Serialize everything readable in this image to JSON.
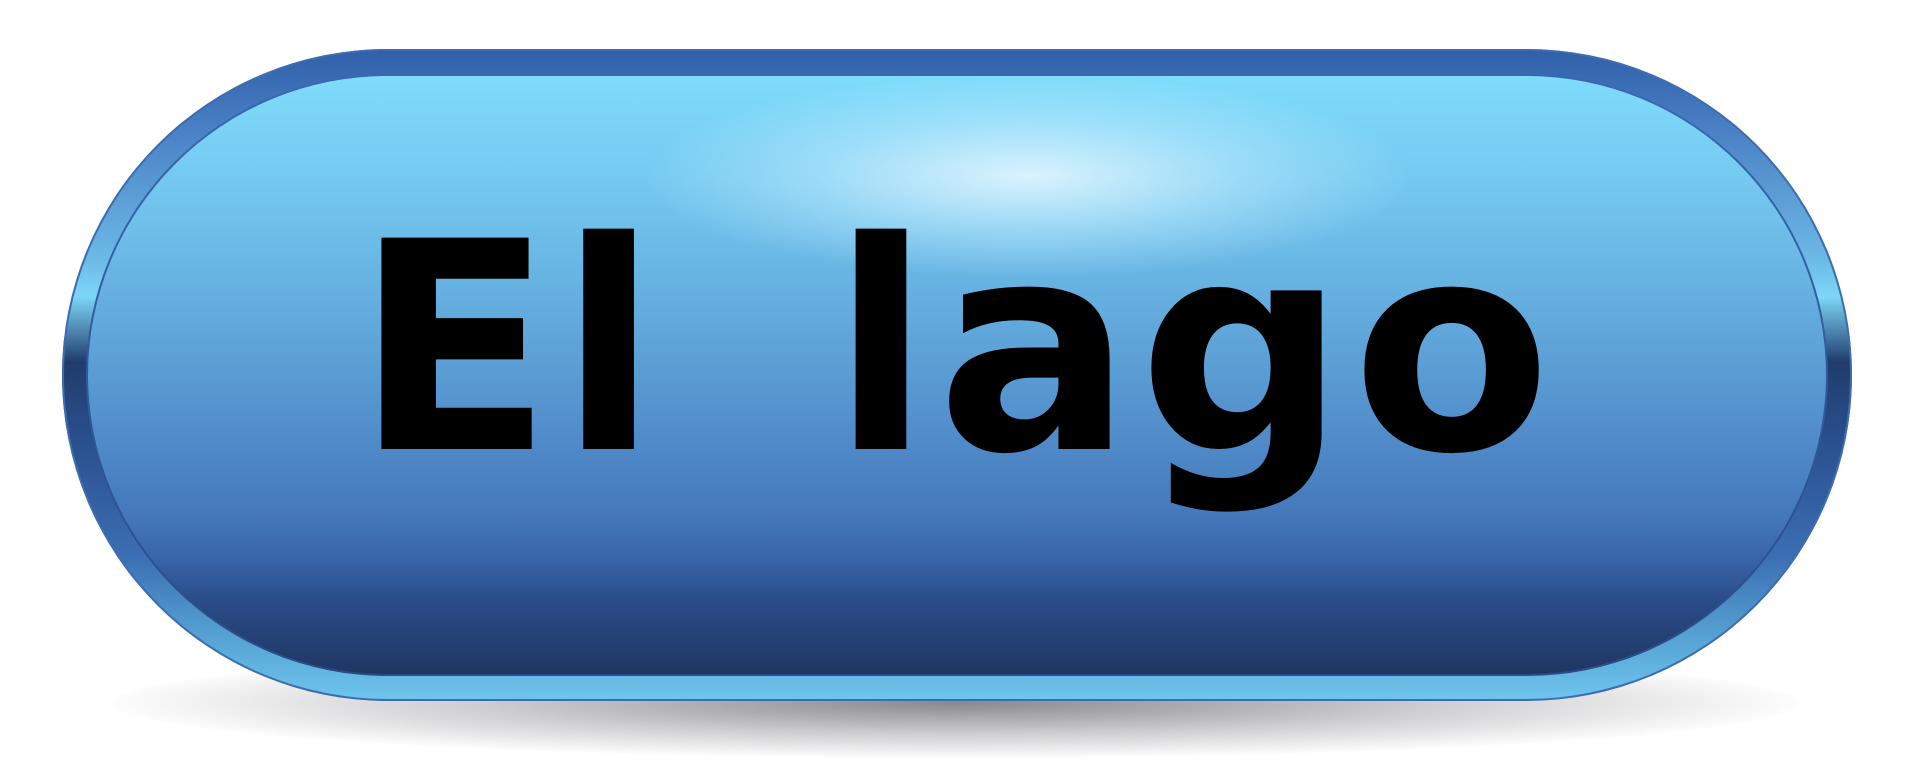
{
  "button": {
    "label": "El lago"
  },
  "colors": {
    "face_top": "#7fdcfb",
    "face_bottom": "#1f3662",
    "rim": "#2f5fa8",
    "text": "#000000"
  }
}
